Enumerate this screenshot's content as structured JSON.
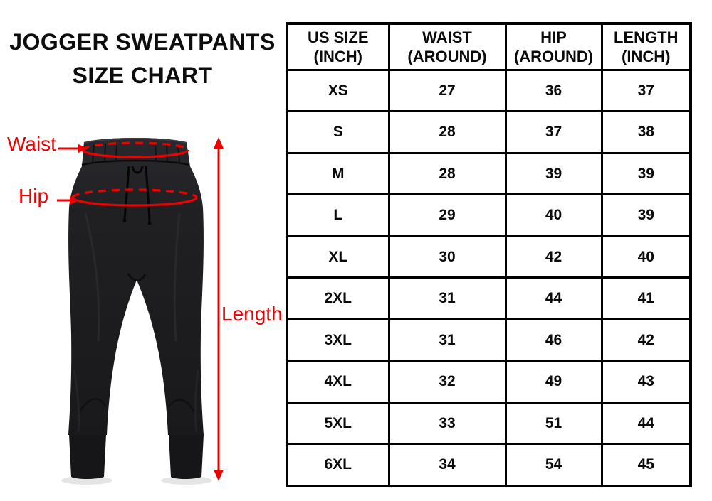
{
  "title": {
    "line1": "JOGGER SWEATPANTS",
    "line2": "SIZE CHART"
  },
  "annotations": {
    "waist": "Waist",
    "hip": "Hip",
    "length": "Length"
  },
  "colors": {
    "annotation_red": "#ee0000",
    "pants_dark": "#1d1d20",
    "table_border": "#000000",
    "background": "#ffffff"
  },
  "table": {
    "headers": [
      {
        "line1": "US SIZE",
        "line2": "(INCH)"
      },
      {
        "line1": "WAIST",
        "line2": "(AROUND)"
      },
      {
        "line1": "HIP",
        "line2": "(AROUND)"
      },
      {
        "line1": "LENGTH",
        "line2": "(INCH)"
      }
    ],
    "rows": [
      {
        "size": "XS",
        "waist": "27",
        "hip": "36",
        "length": "37"
      },
      {
        "size": "S",
        "waist": "28",
        "hip": "37",
        "length": "38"
      },
      {
        "size": "M",
        "waist": "28",
        "hip": "39",
        "length": "39"
      },
      {
        "size": "L",
        "waist": "29",
        "hip": "40",
        "length": "39"
      },
      {
        "size": "XL",
        "waist": "30",
        "hip": "42",
        "length": "40"
      },
      {
        "size": "2XL",
        "waist": "31",
        "hip": "44",
        "length": "41"
      },
      {
        "size": "3XL",
        "waist": "31",
        "hip": "46",
        "length": "42"
      },
      {
        "size": "4XL",
        "waist": "32",
        "hip": "49",
        "length": "43"
      },
      {
        "size": "5XL",
        "waist": "33",
        "hip": "51",
        "length": "44"
      },
      {
        "size": "6XL",
        "waist": "34",
        "hip": "54",
        "length": "45"
      }
    ]
  }
}
